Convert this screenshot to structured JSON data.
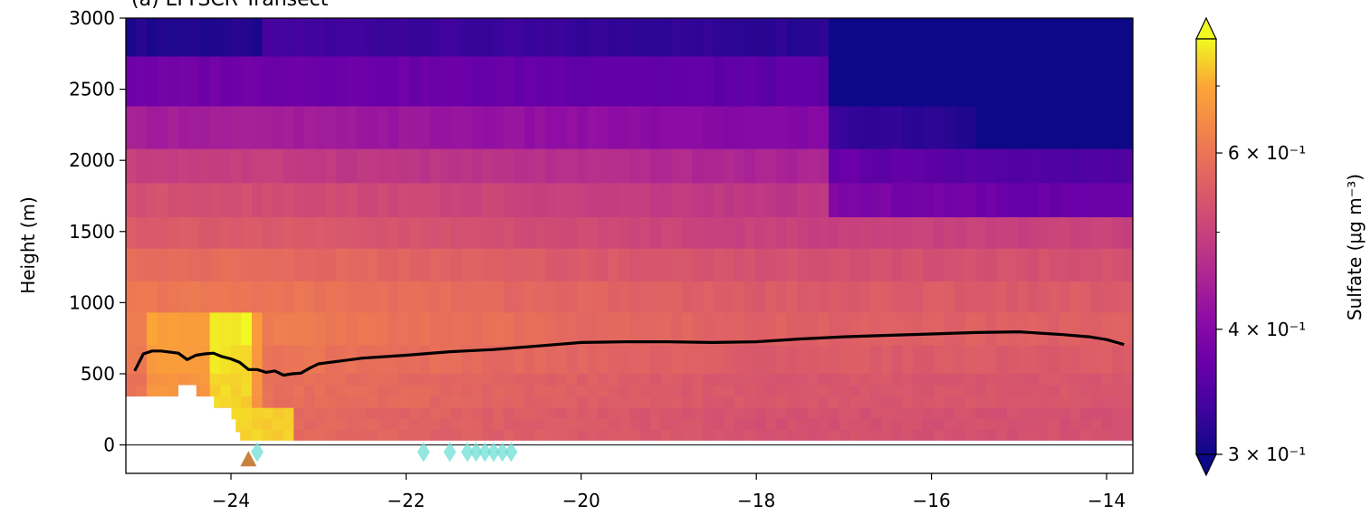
{
  "chart_data": {
    "type": "heatmap",
    "title": "(a) LTTSCR Transect",
    "ylabel": "Height (m)",
    "xlim": [
      -25.2,
      -13.7
    ],
    "ylim": [
      -200,
      3000
    ],
    "xticks": [
      -24,
      -22,
      -20,
      -18,
      -16,
      -14
    ],
    "xtick_labels": [
      "−24",
      "−22",
      "−20",
      "−18",
      "−16",
      "−14"
    ],
    "yticks": [
      0,
      500,
      1000,
      1500,
      2000,
      2500,
      3000
    ],
    "ytick_labels": [
      "0",
      "500",
      "1000",
      "1500",
      "2000",
      "2500",
      "3000"
    ],
    "colorbar": {
      "label": "Sulfate (μg m⁻³)",
      "scale": "log",
      "colormap": "plasma",
      "range": [
        0.3,
        0.78
      ],
      "extend": "both",
      "ticks": [
        {
          "value": 0.3,
          "label": "3 × 10⁻¹"
        },
        {
          "value": 0.4,
          "label": "4 × 10⁻¹"
        },
        {
          "value": 0.6,
          "label": "6 × 10⁻¹"
        }
      ],
      "minor_ticks": [
        0.5,
        0.7
      ]
    },
    "boundary_layer_height": {
      "color": "#000000",
      "x": [
        -25.1,
        -25.0,
        -24.9,
        -24.8,
        -24.6,
        -24.5,
        -24.4,
        -24.3,
        -24.2,
        -24.1,
        -24.0,
        -23.9,
        -23.8,
        -23.7,
        -23.6,
        -23.5,
        -23.4,
        -23.3,
        -23.2,
        -23.1,
        -23.0,
        -22.5,
        -22.0,
        -21.5,
        -21.0,
        -20.5,
        -20.0,
        -19.5,
        -19.0,
        -18.5,
        -18.0,
        -17.5,
        -17.0,
        -16.5,
        -16.0,
        -15.5,
        -15.0,
        -14.5,
        -14.2,
        -14.0,
        -13.8
      ],
      "y": [
        520,
        640,
        660,
        660,
        645,
        600,
        630,
        640,
        645,
        620,
        605,
        580,
        530,
        530,
        510,
        520,
        490,
        500,
        505,
        540,
        570,
        610,
        630,
        655,
        670,
        695,
        720,
        725,
        725,
        720,
        725,
        745,
        760,
        770,
        780,
        790,
        795,
        775,
        760,
        740,
        705
      ]
    },
    "ground_level": 0,
    "cloud_diamonds": {
      "color": "#6ddfd6",
      "y": -50,
      "x": [
        -23.7,
        -21.8,
        -21.5,
        -21.3,
        -21.2,
        -21.1,
        -21.0,
        -20.9,
        -20.8
      ]
    },
    "site_marker": {
      "shape": "triangle",
      "color": "#c9823f",
      "x": -23.8,
      "y": -100
    },
    "terrain_mask_top": {
      "x": [
        -25.2,
        -24.8,
        -24.6,
        -24.4,
        -24.2,
        -24.0,
        -23.95,
        -23.9
      ],
      "y": [
        340,
        340,
        420,
        340,
        260,
        180,
        90,
        0
      ]
    },
    "field_rows": [
      {
        "ybottom": 2730,
        "ytop": 3000,
        "value": 0.32
      },
      {
        "ybottom": 2380,
        "ytop": 2730,
        "value": 0.36
      },
      {
        "ybottom": 2080,
        "ytop": 2380,
        "value": 0.4
      },
      {
        "ybottom": 1840,
        "ytop": 2080,
        "value": 0.45
      },
      {
        "ybottom": 1600,
        "ytop": 1840,
        "value": 0.48
      },
      {
        "ybottom": 1380,
        "ytop": 1600,
        "value": 0.5
      },
      {
        "ybottom": 1150,
        "ytop": 1380,
        "value": 0.53
      },
      {
        "ybottom": 930,
        "ytop": 1150,
        "value": 0.55
      },
      {
        "ybottom": 700,
        "ytop": 930,
        "value": 0.56
      },
      {
        "ybottom": 500,
        "ytop": 700,
        "value": 0.55
      },
      {
        "ybottom": 260,
        "ytop": 500,
        "value": 0.54
      },
      {
        "ybottom": 30,
        "ytop": 260,
        "value": 0.53
      }
    ]
  }
}
